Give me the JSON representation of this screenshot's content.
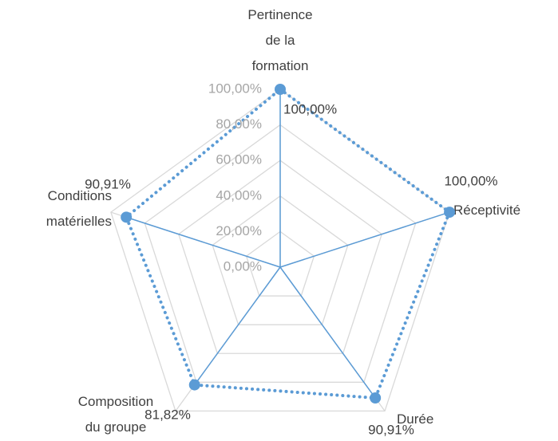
{
  "chart_data": {
    "type": "radar",
    "categories": [
      "Pertinence de la formation",
      "Réceptivité",
      "Durée",
      "Composition du groupe",
      "Conditions matérielles"
    ],
    "series": [
      {
        "name": null,
        "color": "#5b9bd5",
        "values": [
          100,
          100,
          90.91,
          81.82,
          90.91
        ],
        "value_labels": [
          "100,00%",
          "100,00%",
          "90,91%",
          "81,82%",
          "90,91%"
        ]
      }
    ],
    "ylim": [
      0,
      100
    ],
    "yticks": [
      {
        "value": 0,
        "label": "0,00%"
      },
      {
        "value": 20,
        "label": "20,00%"
      },
      {
        "value": 40,
        "label": "40,00%"
      },
      {
        "value": 60,
        "label": "60,00%"
      },
      {
        "value": 80,
        "label": "80,00%"
      },
      {
        "value": 100,
        "label": "100,00%"
      }
    ],
    "grid": true
  }
}
